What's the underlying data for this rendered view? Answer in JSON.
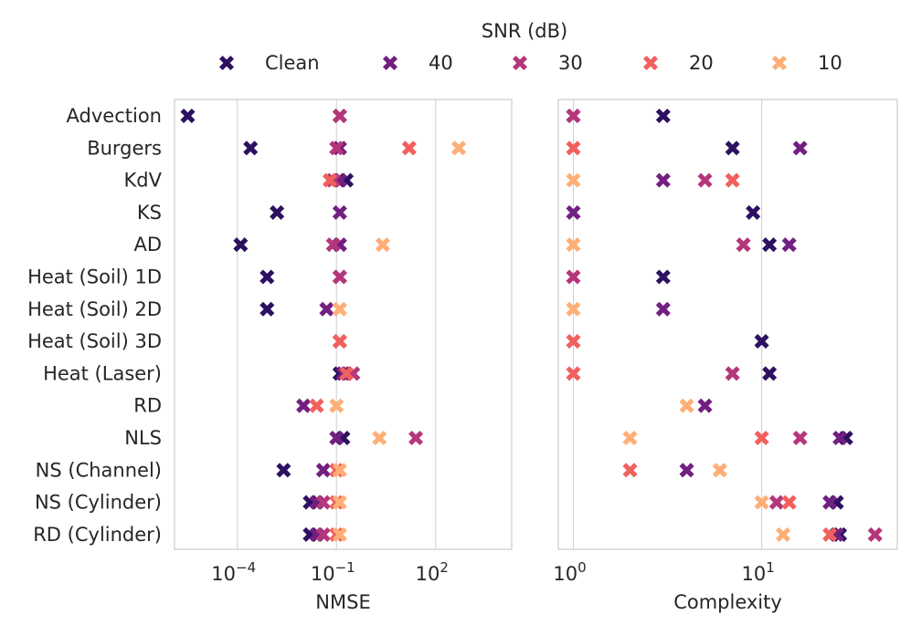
{
  "legend": {
    "title": "SNR (dB)",
    "placement": "top-center",
    "entries": [
      {
        "label": "Clean",
        "color": "#2d1160"
      },
      {
        "label": "40",
        "color": "#721f81"
      },
      {
        "label": "30",
        "color": "#b5367a"
      },
      {
        "label": "20",
        "color": "#f1605d"
      },
      {
        "label": "10",
        "color": "#feaf77"
      }
    ]
  },
  "chart_data": [
    {
      "type": "scatter",
      "title": "",
      "xlabel": "NMSE",
      "ylabel": "",
      "xscale": "log",
      "xlim_log10": [
        -5.9,
        4.3
      ],
      "xticks": [
        {
          "value": -4,
          "base": "10",
          "exp": "−4"
        },
        {
          "value": -1,
          "base": "10",
          "exp": "−1"
        },
        {
          "value": 2,
          "base": "10",
          "exp": "2"
        }
      ],
      "grid": true,
      "categories": [
        "Advection",
        "Burgers",
        "KdV",
        "KS",
        "AD",
        "Heat (Soil) 1D",
        "Heat (Soil) 2D",
        "Heat (Soil) 3D",
        "Heat (Laser)",
        "RD",
        "NLS",
        "NS (Channel)",
        "NS (Cylinder)",
        "RD (Cylinder)"
      ],
      "series": [
        {
          "name": "Clean",
          "log10_values": [
            -5.5,
            -3.6,
            -0.7,
            -2.8,
            -3.9,
            -3.1,
            -3.1,
            null,
            -0.9,
            null,
            -0.8,
            -2.6,
            -1.8,
            -1.8
          ]
        },
        {
          "name": "40",
          "log10_values": [
            -0.9,
            -0.9,
            -0.9,
            -0.9,
            -0.9,
            -0.9,
            -1.3,
            null,
            -0.8,
            -2.0,
            -1.0,
            -1.4,
            -1.6,
            -1.6
          ]
        },
        {
          "name": "30",
          "log10_values": [
            -0.9,
            -1.0,
            -1.1,
            null,
            -1.1,
            -0.9,
            null,
            -0.9,
            -0.5,
            null,
            1.4,
            null,
            -1.4,
            -1.4
          ]
        },
        {
          "name": "20",
          "log10_values": [
            null,
            1.2,
            -1.2,
            null,
            null,
            null,
            null,
            -0.9,
            -0.7,
            -1.6,
            null,
            -1.0,
            -1.0,
            -1.0
          ]
        },
        {
          "name": "10",
          "log10_values": [
            null,
            2.7,
            null,
            null,
            0.4,
            null,
            -0.9,
            null,
            null,
            -1.0,
            0.3,
            -0.9,
            -0.9,
            -0.9
          ]
        }
      ]
    },
    {
      "type": "scatter",
      "title": "",
      "xlabel": "Complexity",
      "ylabel": "",
      "xscale": "log",
      "xlim_log10": [
        -0.08,
        1.72
      ],
      "xticks": [
        {
          "value": 0,
          "base": "10",
          "exp": "0"
        },
        {
          "value": 1,
          "base": "10",
          "exp": "1"
        }
      ],
      "grid": true,
      "categories": [
        "Advection",
        "Burgers",
        "KdV",
        "KS",
        "AD",
        "Heat (Soil) 1D",
        "Heat (Soil) 2D",
        "Heat (Soil) 3D",
        "Heat (Laser)",
        "RD",
        "NLS",
        "NS (Channel)",
        "NS (Cylinder)",
        "RD (Cylinder)"
      ],
      "series": [
        {
          "name": "Clean",
          "values": [
            3,
            7,
            null,
            9,
            11,
            3,
            null,
            10,
            11,
            null,
            28,
            null,
            25,
            26
          ]
        },
        {
          "name": "40",
          "values": [
            1,
            16,
            3,
            1,
            14,
            null,
            3,
            null,
            null,
            5,
            26,
            4,
            23,
            25
          ]
        },
        {
          "name": "30",
          "values": [
            1,
            null,
            5,
            null,
            8,
            1,
            null,
            null,
            7,
            null,
            16,
            null,
            12,
            40
          ]
        },
        {
          "name": "20",
          "values": [
            null,
            1,
            7,
            null,
            null,
            null,
            null,
            1,
            1,
            null,
            10,
            2,
            14,
            23
          ]
        },
        {
          "name": "10",
          "values": [
            null,
            null,
            1,
            null,
            1,
            null,
            1,
            null,
            null,
            4,
            2,
            6,
            10,
            13
          ]
        }
      ]
    }
  ]
}
